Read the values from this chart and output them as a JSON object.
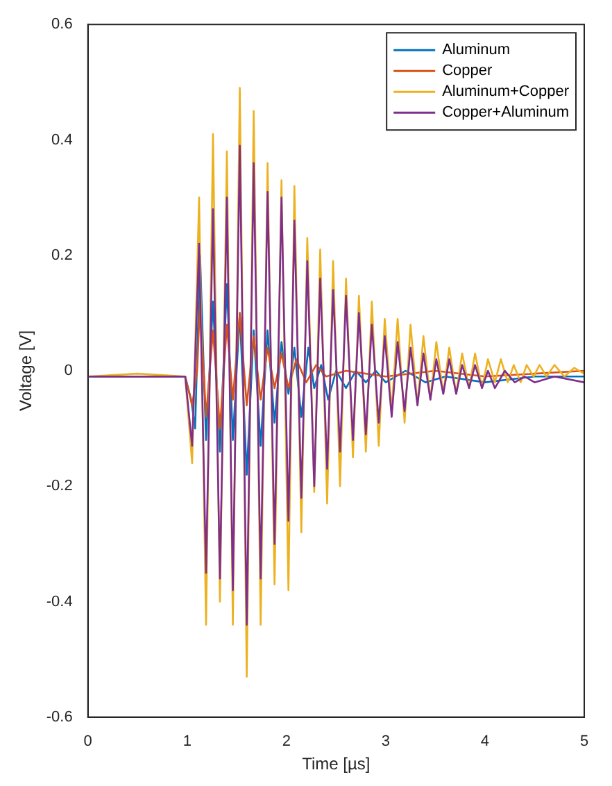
{
  "chart_data": {
    "type": "line",
    "xlabel": "Time [µs]",
    "ylabel": "Voltage [V]",
    "xlim": [
      0,
      5
    ],
    "xticks": [
      0,
      1,
      2,
      3,
      4,
      5
    ],
    "ylim": [
      -0.6,
      0.6
    ],
    "yticks": [
      -0.6,
      -0.4,
      -0.2,
      0,
      0.2,
      0.4,
      0.6
    ],
    "grid": false,
    "legend": "top right",
    "marker": "none",
    "line_style": "solid",
    "series": [
      {
        "name": "Aluminum",
        "color": "#0072bd",
        "x": [
          0,
          0.98,
          1.04,
          1.08,
          1.13,
          1.19,
          1.26,
          1.33,
          1.4,
          1.46,
          1.53,
          1.6,
          1.67,
          1.74,
          1.81,
          1.88,
          1.95,
          2.02,
          2.08,
          2.15,
          2.22,
          2.28,
          2.35,
          2.42,
          2.5,
          2.6,
          2.7,
          2.8,
          2.9,
          3.0,
          3.2,
          3.4,
          3.6,
          4.0,
          4.5,
          5.0
        ],
        "values": [
          -0.01,
          -0.01,
          -0.05,
          -0.1,
          0.2,
          -0.12,
          0.12,
          -0.14,
          0.15,
          -0.12,
          0.1,
          -0.18,
          0.07,
          -0.13,
          0.07,
          -0.09,
          0.05,
          -0.04,
          0.04,
          -0.08,
          0.04,
          -0.03,
          0.01,
          -0.05,
          0.0,
          -0.03,
          0.0,
          -0.02,
          0.0,
          -0.02,
          0.0,
          -0.02,
          -0.01,
          -0.02,
          -0.01,
          -0.01
        ]
      },
      {
        "name": "Copper",
        "color": "#d95319",
        "x": [
          0,
          0.98,
          1.05,
          1.1,
          1.13,
          1.19,
          1.26,
          1.33,
          1.4,
          1.46,
          1.53,
          1.6,
          1.67,
          1.74,
          1.81,
          1.88,
          1.95,
          2.02,
          2.1,
          2.2,
          2.3,
          2.4,
          2.6,
          3.0,
          3.5,
          4.0,
          5.0
        ],
        "values": [
          -0.01,
          -0.01,
          -0.06,
          0.0,
          0.12,
          -0.08,
          0.07,
          -0.1,
          0.08,
          -0.05,
          0.1,
          -0.06,
          0.06,
          -0.05,
          0.04,
          -0.03,
          0.03,
          -0.03,
          0.02,
          -0.02,
          0.01,
          -0.01,
          0.0,
          -0.01,
          0.0,
          -0.01,
          0.0
        ]
      },
      {
        "name": "Aluminum+Copper",
        "color": "#edb120",
        "x": [
          0,
          0.5,
          0.98,
          1.05,
          1.12,
          1.19,
          1.26,
          1.33,
          1.4,
          1.46,
          1.53,
          1.6,
          1.67,
          1.74,
          1.81,
          1.88,
          1.95,
          2.02,
          2.08,
          2.15,
          2.21,
          2.28,
          2.34,
          2.41,
          2.47,
          2.54,
          2.6,
          2.67,
          2.73,
          2.8,
          2.86,
          2.93,
          2.99,
          3.06,
          3.12,
          3.19,
          3.25,
          3.32,
          3.38,
          3.45,
          3.51,
          3.58,
          3.64,
          3.71,
          3.77,
          3.84,
          3.9,
          3.97,
          4.03,
          4.1,
          4.16,
          4.23,
          4.29,
          4.36,
          4.42,
          4.49,
          4.55,
          4.62,
          4.7,
          4.8,
          4.9,
          5.0
        ],
        "values": [
          -0.01,
          -0.005,
          -0.01,
          -0.16,
          0.3,
          -0.44,
          0.41,
          -0.4,
          0.38,
          -0.44,
          0.49,
          -0.53,
          0.45,
          -0.44,
          0.36,
          -0.37,
          0.33,
          -0.38,
          0.32,
          -0.28,
          0.23,
          -0.21,
          0.21,
          -0.23,
          0.19,
          -0.2,
          0.16,
          -0.15,
          0.13,
          -0.14,
          0.12,
          -0.13,
          0.09,
          -0.07,
          0.09,
          -0.09,
          0.08,
          -0.06,
          0.06,
          -0.05,
          0.05,
          -0.04,
          0.04,
          -0.04,
          0.03,
          -0.03,
          0.03,
          -0.03,
          0.02,
          -0.02,
          0.02,
          -0.02,
          0.01,
          -0.02,
          0.01,
          -0.01,
          0.01,
          -0.01,
          0.01,
          -0.01,
          0.005,
          -0.005
        ]
      },
      {
        "name": "Copper+Aluminum",
        "color": "#7e2f8e",
        "x": [
          0,
          0.98,
          1.05,
          1.12,
          1.19,
          1.26,
          1.33,
          1.4,
          1.46,
          1.53,
          1.6,
          1.67,
          1.74,
          1.81,
          1.88,
          1.95,
          2.02,
          2.08,
          2.15,
          2.21,
          2.28,
          2.34,
          2.41,
          2.47,
          2.54,
          2.6,
          2.67,
          2.73,
          2.8,
          2.86,
          2.93,
          2.99,
          3.06,
          3.12,
          3.19,
          3.25,
          3.32,
          3.38,
          3.45,
          3.51,
          3.58,
          3.64,
          3.71,
          3.77,
          3.84,
          3.9,
          3.97,
          4.03,
          4.1,
          4.2,
          4.3,
          4.4,
          4.5,
          4.7,
          5.0
        ],
        "values": [
          -0.01,
          -0.01,
          -0.13,
          0.22,
          -0.35,
          0.28,
          -0.36,
          0.3,
          -0.38,
          0.39,
          -0.44,
          0.36,
          -0.36,
          0.31,
          -0.3,
          0.3,
          -0.26,
          0.26,
          -0.22,
          0.19,
          -0.2,
          0.16,
          -0.17,
          0.14,
          -0.14,
          0.13,
          -0.12,
          0.1,
          -0.11,
          0.08,
          -0.09,
          0.06,
          -0.08,
          0.05,
          -0.07,
          0.04,
          -0.06,
          0.03,
          -0.05,
          0.02,
          -0.04,
          0.02,
          -0.04,
          0.01,
          -0.03,
          0.01,
          -0.03,
          0.0,
          -0.03,
          0.0,
          -0.02,
          -0.01,
          -0.02,
          -0.01,
          -0.02
        ]
      }
    ]
  }
}
